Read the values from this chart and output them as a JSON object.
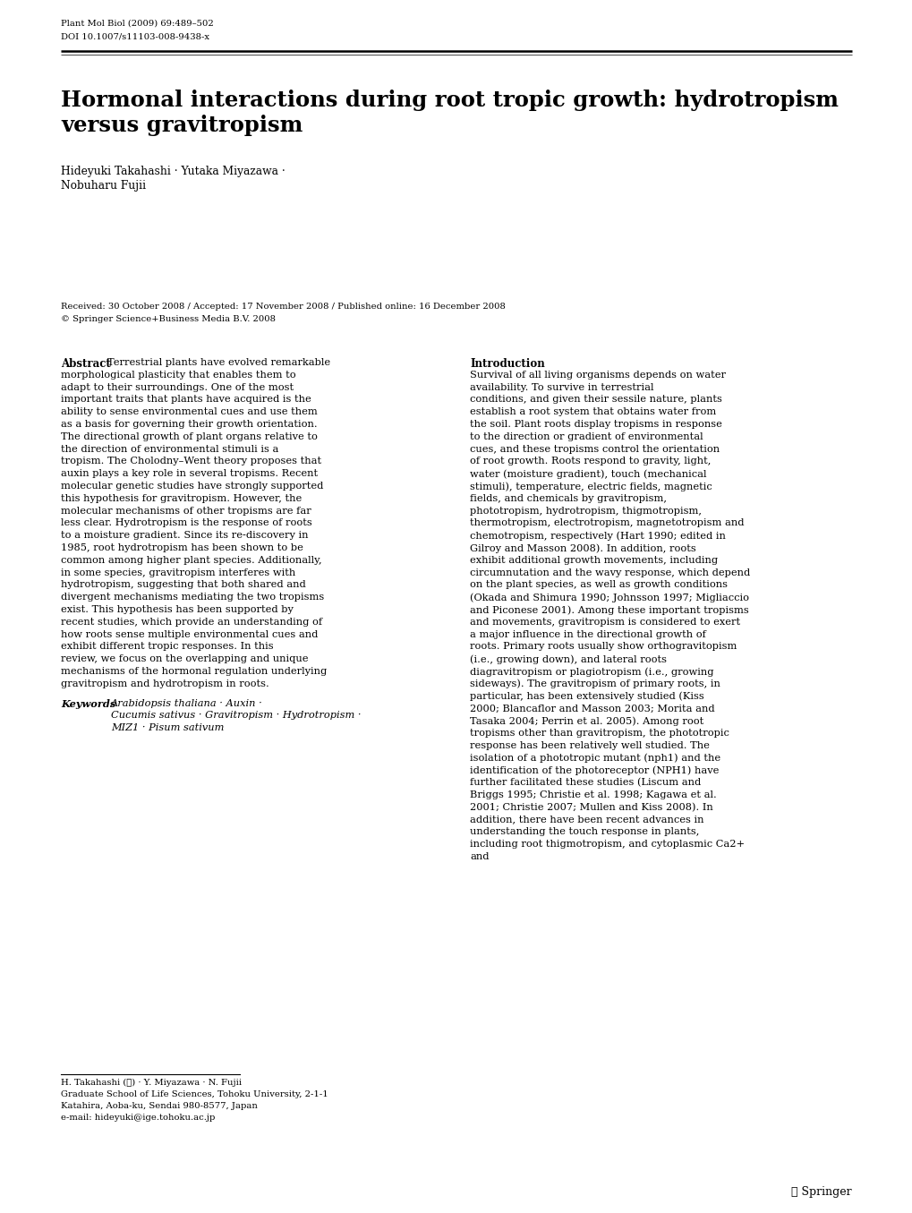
{
  "journal_line1": "Plant Mol Biol (2009) 69:489–502",
  "journal_line2": "DOI 10.1007/s11103-008-9438-x",
  "title_line1": "Hormonal interactions during root tropic growth: hydrotropism",
  "title_line2": "versus gravitropism",
  "authors_line1": "Hideyuki Takahashi · Yutaka Miyazawa ·",
  "authors_line2": "Nobuharu Fujii",
  "received": "Received: 30 October 2008 / Accepted: 17 November 2008 / Published online: 16 December 2008",
  "copyright": "© Springer Science+Business Media B.V. 2008",
  "abstract_label": "Abstract",
  "abstract_text": "Terrestrial plants have evolved remarkable morphological plasticity that enables them to adapt to their surroundings. One of the most important traits that plants have acquired is the ability to sense environmental cues and use them as a basis for governing their growth orientation. The directional growth of plant organs relative to the direction of environmental stimuli is a tropism. The Cholodny–Went theory proposes that auxin plays a key role in several tropisms. Recent molecular genetic studies have strongly supported this hypothesis for gravitropism. However, the molecular mechanisms of other tropisms are far less clear. Hydrotropism is the response of roots to a moisture gradient. Since its re-discovery in 1985, root hydrotropism has been shown to be common among higher plant species. Additionally, in some species, gravitropism interferes with hydrotropism, suggesting that both shared and divergent mechanisms mediating the two tropisms exist. This hypothesis has been supported by recent studies, which provide an understanding of how roots sense multiple environmental cues and exhibit different tropic responses. In this review, we focus on the overlapping and unique mechanisms of the hormonal regulation underlying gravitropism and hydrotropism in roots.",
  "keywords_label": "Keywords",
  "kw_italic": "Arabidopsis thaliana",
  "kw_roman1": " · Auxin ·",
  "kw_italic2": "Cucumis sativus",
  "kw_roman2": " · Gravitropism · Hydrotropism ·",
  "kw_roman3": "MIZ1 ·",
  "kw_italic3": "Pisum sativum",
  "intro_label": "Introduction",
  "intro_text": "Survival of all living organisms depends on water availability. To survive in terrestrial conditions, and given their sessile nature, plants establish a root system that obtains water from the soil. Plant roots display tropisms in response to the direction or gradient of environmental cues, and these tropisms control the orientation of root growth. Roots respond to gravity, light, water (moisture gradient), touch (mechanical stimuli), temperature, electric fields, magnetic fields, and chemicals by gravitropism, phototropism, hydrotropism, thigmotropism, thermotropism, electrotropism, magnetotropism and chemotropism, respectively (Hart 1990; edited in Gilroy and Masson 2008). In addition, roots exhibit additional growth movements, including circumnutation and the wavy response, which depend on the plant species, as well as growth conditions (Okada and Shimura 1990; Johnsson 1997; Migliaccio and Piconese 2001). Among these important tropisms and movements, gravitropism is considered to exert a major influence in the directional growth of roots. Primary roots usually show orthogravitopism (i.e., growing down), and lateral roots diagravitropism or plagiotropism (i.e., growing sideways). The gravitropism of primary roots, in particular, has been extensively studied (Kiss 2000; Blancaflor and Masson 2003; Morita and Tasaka 2004; Perrin et al. 2005). Among root tropisms other than gravitropism, the phototropic response has been relatively well studied. The isolation of a phototropic mutant (nph1) and the identification of the photoreceptor (NPH1) have further facilitated these studies (Liscum and Briggs 1995; Christie et al. 1998; Kagawa et al. 2001; Christie 2007; Mullen and Kiss 2008). In addition, there have been recent advances in understanding the touch response in plants, including root thigmotropism, and cytoplasmic Ca2+ and",
  "footnote_line1": "H. Takahashi (✉) · Y. Miyazawa · N. Fujii",
  "footnote_line2": "Graduate School of Life Sciences, Tohoku University, 2-1-1",
  "footnote_line3": "Katahira, Aoba-ku, Sendai 980-8577, Japan",
  "footnote_line4": "e-mail: hideyuki@ige.tohoku.ac.jp",
  "springer_logo": "⑥ Springer",
  "bg_color": "#ffffff",
  "text_color": "#000000"
}
